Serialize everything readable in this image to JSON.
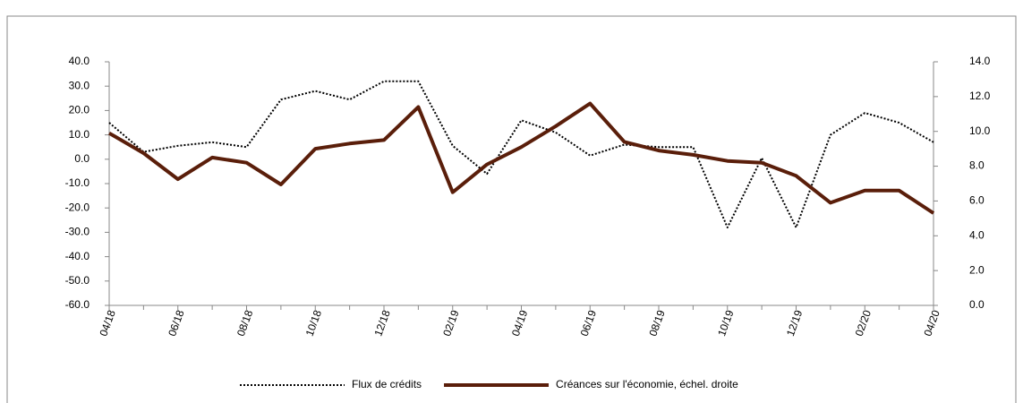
{
  "chart_data": {
    "type": "line",
    "categories": [
      "04/18",
      null,
      "06/18",
      null,
      "08/18",
      null,
      "10/18",
      null,
      "12/18",
      null,
      "02/19",
      null,
      "04/19",
      null,
      "06/19",
      null,
      "08/19",
      null,
      "10/19",
      null,
      "12/19",
      null,
      "02/20",
      null,
      "04/20"
    ],
    "series": [
      {
        "name": "Flux de crédits",
        "color": "#000000",
        "style": "dotted",
        "axis": "y",
        "values": [
          15,
          3,
          5.5,
          7,
          5,
          24.5,
          28,
          24.5,
          32,
          32,
          5.5,
          -6,
          16,
          11,
          1.5,
          6,
          5,
          5,
          -28,
          0.5,
          -28,
          10,
          19,
          15,
          7
        ]
      },
      {
        "name": "Créances sur l'économie, échel. droite",
        "color": "#5a1e0a",
        "style": "solid",
        "axis": "y2",
        "values": [
          9.9,
          8.75,
          7.25,
          8.5,
          8.2,
          6.95,
          9.0,
          9.3,
          9.5,
          11.4,
          6.5,
          8.1,
          9.1,
          10.3,
          11.6,
          9.4,
          8.9,
          8.65,
          8.3,
          8.2,
          7.45,
          5.9,
          6.6,
          6.6,
          5.3
        ]
      }
    ],
    "ylim": [
      -60,
      40
    ],
    "yticks": [
      {
        "value": -60,
        "label": "-60.0"
      },
      {
        "value": -50,
        "label": "-50.0"
      },
      {
        "value": -40,
        "label": "-40.0"
      },
      {
        "value": -30,
        "label": "-30.0"
      },
      {
        "value": -20,
        "label": "-20.0"
      },
      {
        "value": -10,
        "label": "-10.0"
      },
      {
        "value": 0,
        "label": "0.0"
      },
      {
        "value": 10,
        "label": "10.0"
      },
      {
        "value": 20,
        "label": "20.0"
      },
      {
        "value": 30,
        "label": "30.0"
      },
      {
        "value": 40,
        "label": "40.0"
      }
    ],
    "y2lim": [
      0,
      14
    ],
    "y2ticks": [
      {
        "value": 0,
        "label": "0.0"
      },
      {
        "value": 2,
        "label": "2.0"
      },
      {
        "value": 4,
        "label": "4.0"
      },
      {
        "value": 6,
        "label": "6.0"
      },
      {
        "value": 8,
        "label": "8.0"
      },
      {
        "value": 10,
        "label": "10.0"
      },
      {
        "value": 12,
        "label": "12.0"
      },
      {
        "value": 14,
        "label": "14.0"
      }
    ],
    "grid": false,
    "legend": "bottom"
  }
}
